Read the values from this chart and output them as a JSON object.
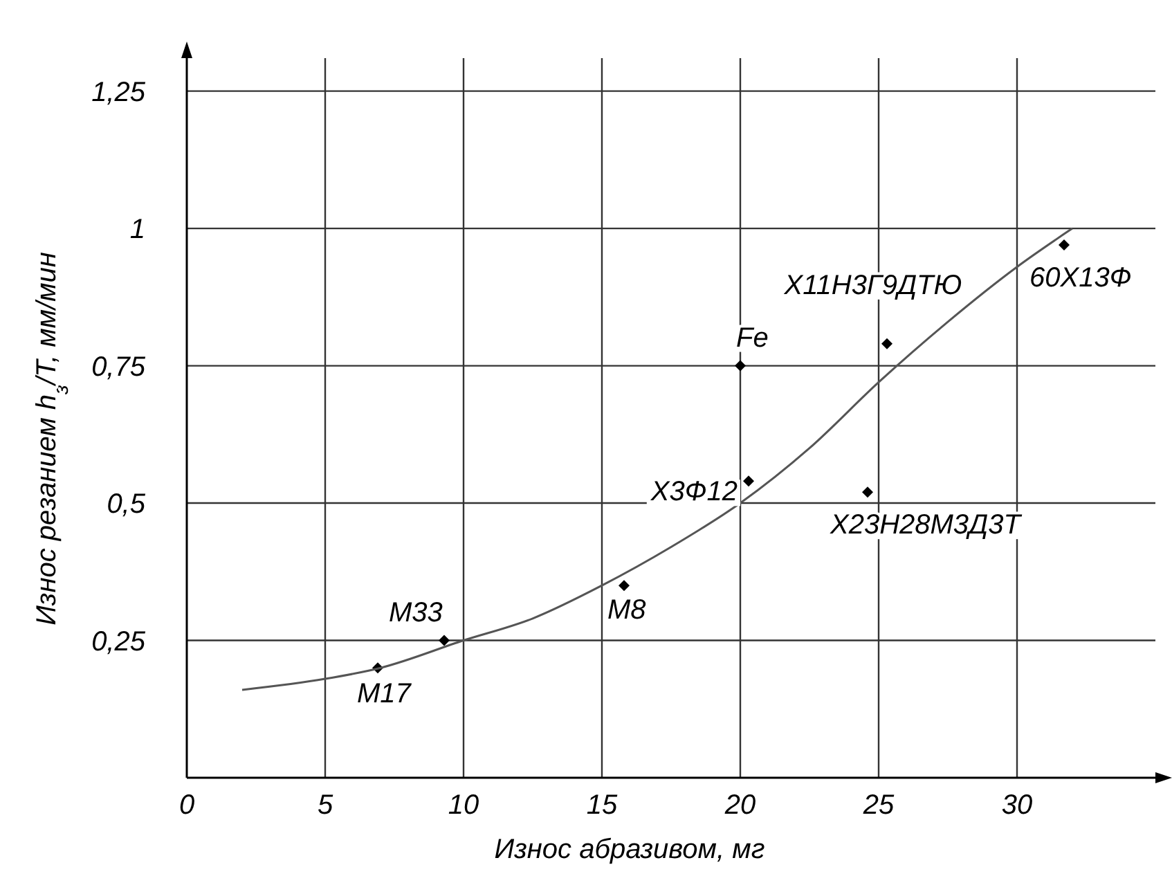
{
  "chart_data": {
    "type": "scatter",
    "xlabel": "Износ абразивом, мг",
    "ylabel": "Износ резанием h$_{з}$/T, мм/мин",
    "xlim": [
      0,
      35
    ],
    "ylim": [
      0,
      1.31
    ],
    "xticks": [
      0,
      5,
      10,
      15,
      20,
      25,
      30
    ],
    "yticks": [
      {
        "value": 0.25,
        "label": "0,25"
      },
      {
        "value": 0.5,
        "label": "0,5"
      },
      {
        "value": 0.75,
        "label": "0,75"
      },
      {
        "value": 1,
        "label": "1"
      },
      {
        "value": 1.25,
        "label": "1,25"
      }
    ],
    "grid": true,
    "series": [
      {
        "color": "#000000",
        "marker": "diamond",
        "x": [
          6.9,
          9.3,
          15.8,
          20,
          20.3,
          25.3,
          24.6,
          31.7
        ],
        "values": [
          0.2,
          0.25,
          0.35,
          0.75,
          0.54,
          0.79,
          0.52,
          0.97
        ]
      },
      {
        "type": "line",
        "color": "#555555",
        "line_style": "solid",
        "marker": "none",
        "x": [
          2,
          5,
          7,
          10,
          12.5,
          15,
          17.5,
          20,
          22.5,
          25,
          27.5,
          30,
          32
        ],
        "values": [
          0.16,
          0.18,
          0.2,
          0.25,
          0.29,
          0.35,
          0.42,
          0.5,
          0.6,
          0.72,
          0.83,
          0.93,
          1.0
        ]
      }
    ],
    "annotations": [
      {
        "text": "M17",
        "x": 6.9,
        "y": 0.2
      },
      {
        "text": "M33",
        "x": 9.3,
        "y": 0.25
      },
      {
        "text": "M8",
        "x": 15.8,
        "y": 0.35
      },
      {
        "text": "Fe",
        "x": 20,
        "y": 0.75
      },
      {
        "text": "Х3Ф12",
        "x": 20.3,
        "y": 0.54
      },
      {
        "text": "Х11Н3Г9ДТЮ",
        "x": 25.3,
        "y": 0.79
      },
      {
        "text": "Х23Н28М3Д3Т",
        "x": 24.6,
        "y": 0.52
      },
      {
        "text": "60Х13Ф",
        "x": 31.7,
        "y": 0.97
      }
    ]
  }
}
